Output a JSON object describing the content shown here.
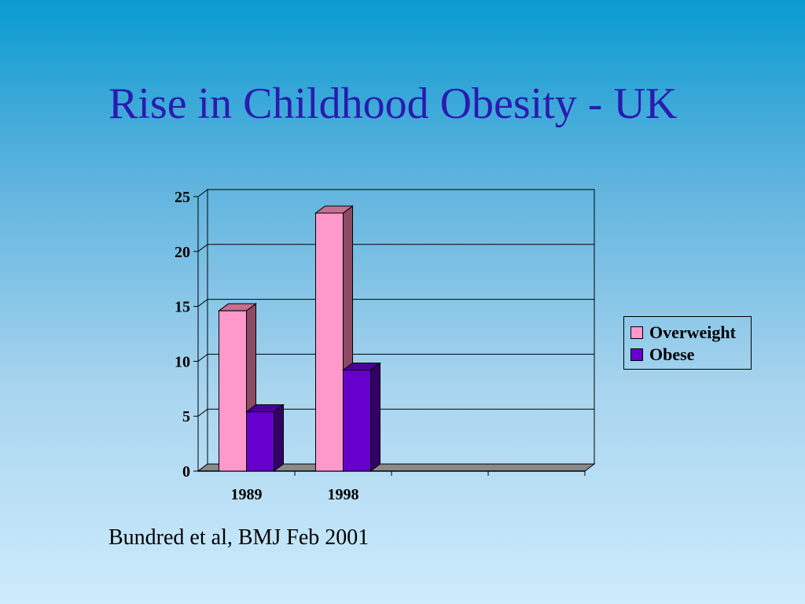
{
  "slide": {
    "title": "Rise in Childhood Obesity - UK",
    "citation": "Bundred et al, BMJ Feb 2001"
  },
  "colors": {
    "overweight": "#ff99cc",
    "overweight_side": "#8c4a64",
    "overweight_top": "#c4708f",
    "obese": "#6600cc",
    "obese_side": "#330066",
    "obese_top": "#4a0099",
    "title": "#2a1bb0"
  },
  "chart_data": {
    "type": "bar",
    "style": "3d-clustered-column",
    "categories": [
      "1989",
      "1998"
    ],
    "category_slots": 4,
    "series": [
      {
        "name": "Overweight",
        "values": [
          14.6,
          23.5
        ]
      },
      {
        "name": "Obese",
        "values": [
          5.4,
          9.2
        ]
      }
    ],
    "yticks": [
      "0",
      "5",
      "10",
      "15",
      "20",
      "25"
    ],
    "ylim": [
      0,
      25
    ],
    "grid": true,
    "legend": "right"
  }
}
